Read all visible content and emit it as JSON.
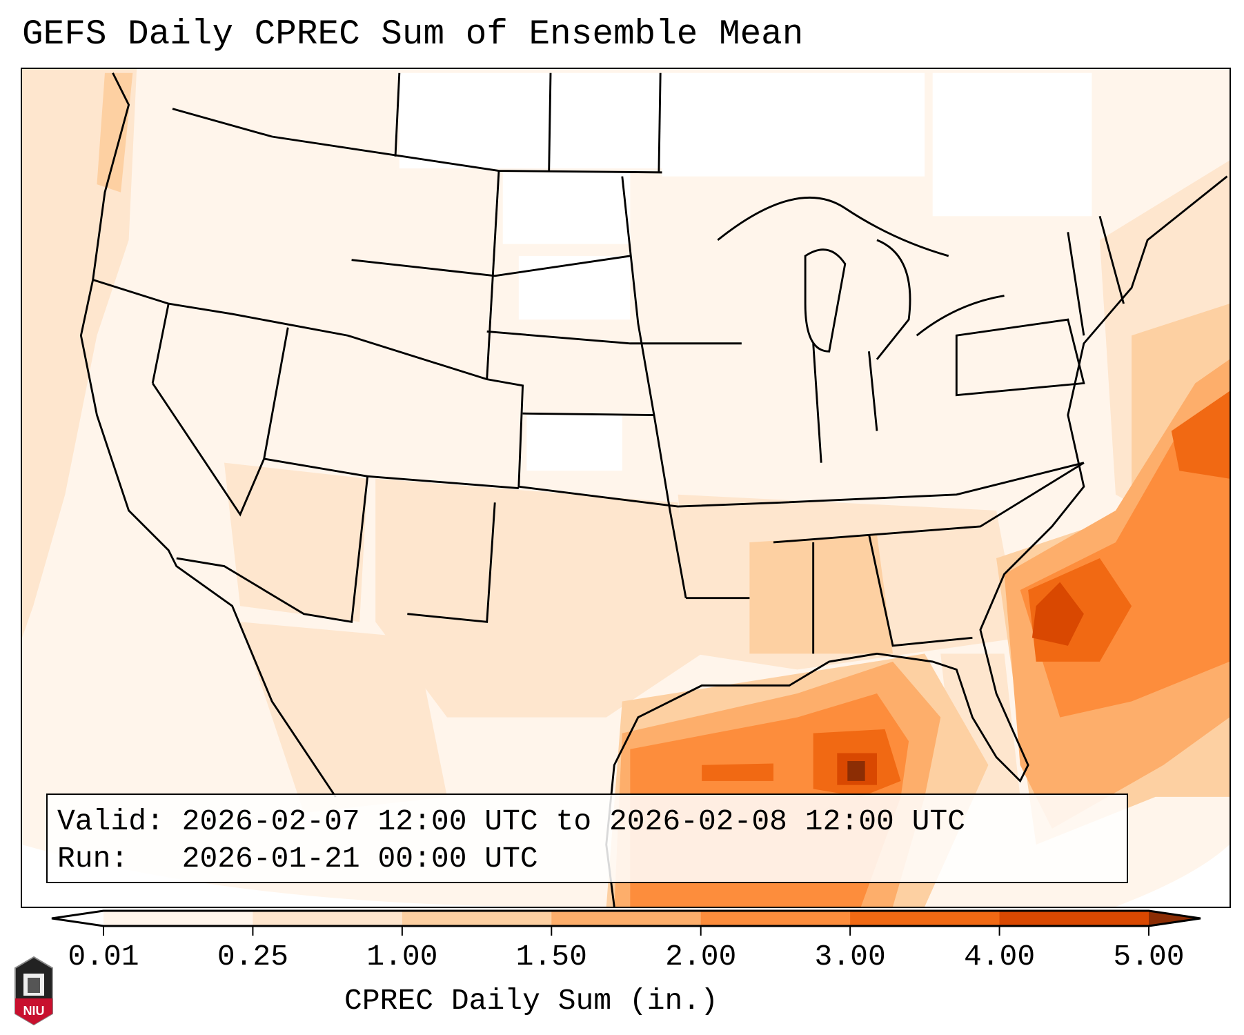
{
  "title": "GEFS Daily CPREC Sum of Ensemble Mean",
  "info": {
    "valid_label": "Valid:",
    "valid_value": "2026-02-07 12:00 UTC to 2026-02-08 12:00 UTC",
    "run_label": "Run:",
    "run_value": "2026-01-21 00:00 UTC"
  },
  "colorbar": {
    "label": "CPREC Daily Sum (in.)",
    "ticks": [
      "0.01",
      "0.25",
      "1.00",
      "1.50",
      "2.00",
      "3.00",
      "4.00",
      "5.00"
    ],
    "colors": [
      "#fff5eb",
      "#fee6ce",
      "#fdd0a2",
      "#fdae6b",
      "#fd8d3c",
      "#f16913",
      "#d94801",
      "#8c2d04"
    ],
    "under_color": "#ffffff"
  },
  "logo": {
    "text": "NIU"
  }
}
